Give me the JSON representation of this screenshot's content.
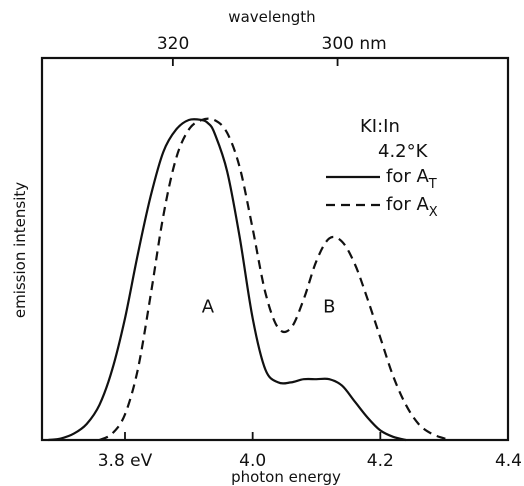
{
  "chart_data": {
    "type": "line",
    "title": "",
    "xlabel": "photon energy",
    "x2label": "wavelength",
    "ylabel": "emission intensity",
    "xlim": [
      3.67,
      4.4
    ],
    "ylim": [
      0,
      1.0
    ],
    "x_ticks": [
      {
        "value": 3.8,
        "label": "3.8 eV"
      },
      {
        "value": 4.0,
        "label": "4.0"
      },
      {
        "value": 4.2,
        "label": "4.2"
      },
      {
        "value": 4.4,
        "label": "4.4"
      }
    ],
    "x2_ticks": [
      {
        "value": 320,
        "energy": 3.875,
        "label": "320"
      },
      {
        "value": 300,
        "energy": 4.133,
        "label": "300  nm"
      }
    ],
    "annotation_lines": [
      "KI:In",
      "4.2°K"
    ],
    "peak_labels": [
      {
        "label": "A",
        "x": 3.93,
        "y": 0.42
      },
      {
        "label": "B",
        "x": 4.12,
        "y": 0.42
      }
    ],
    "legend_position": "top-right",
    "series": [
      {
        "name": "for A",
        "name_sub": "T",
        "style": "solid",
        "x": [
          3.68,
          3.7,
          3.72,
          3.74,
          3.76,
          3.78,
          3.8,
          3.82,
          3.84,
          3.86,
          3.88,
          3.9,
          3.92,
          3.93,
          3.94,
          3.96,
          3.98,
          4.0,
          4.02,
          4.04,
          4.06,
          4.08,
          4.1,
          4.12,
          4.14,
          4.16,
          4.18,
          4.2,
          4.22,
          4.24
        ],
        "values": [
          0.0,
          0.005,
          0.02,
          0.05,
          0.11,
          0.22,
          0.38,
          0.58,
          0.76,
          0.9,
          0.97,
          1.0,
          1.0,
          0.99,
          0.96,
          0.84,
          0.63,
          0.38,
          0.22,
          0.18,
          0.18,
          0.19,
          0.19,
          0.19,
          0.17,
          0.12,
          0.07,
          0.03,
          0.01,
          0.0
        ]
      },
      {
        "name": "for A",
        "name_sub": "X",
        "style": "dashed",
        "x": [
          3.76,
          3.78,
          3.8,
          3.82,
          3.84,
          3.86,
          3.88,
          3.9,
          3.92,
          3.94,
          3.96,
          3.98,
          4.0,
          4.02,
          4.04,
          4.06,
          4.08,
          4.1,
          4.12,
          4.14,
          4.16,
          4.18,
          4.2,
          4.22,
          4.24,
          4.26,
          4.28,
          4.3,
          4.31
        ],
        "values": [
          0.0,
          0.02,
          0.08,
          0.22,
          0.45,
          0.7,
          0.88,
          0.97,
          1.0,
          1.0,
          0.96,
          0.85,
          0.66,
          0.46,
          0.35,
          0.35,
          0.44,
          0.56,
          0.63,
          0.62,
          0.55,
          0.44,
          0.32,
          0.2,
          0.11,
          0.05,
          0.02,
          0.005,
          0.0
        ]
      }
    ]
  }
}
